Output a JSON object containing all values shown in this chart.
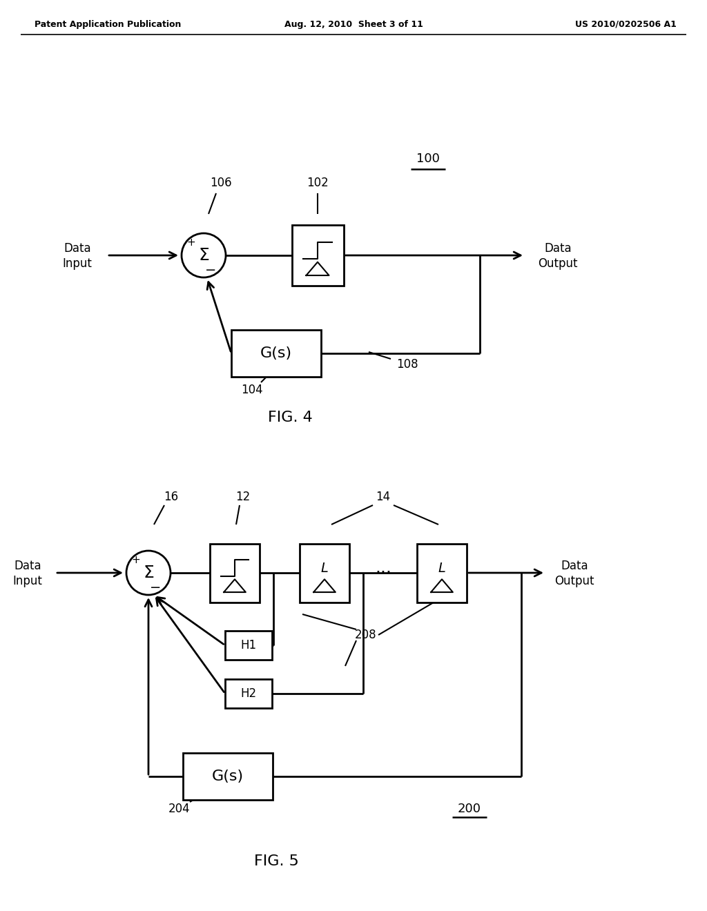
{
  "bg_color": "#ffffff",
  "header_left": "Patent Application Publication",
  "header_center": "Aug. 12, 2010  Sheet 3 of 11",
  "header_right": "US 2010/0202506 A1"
}
